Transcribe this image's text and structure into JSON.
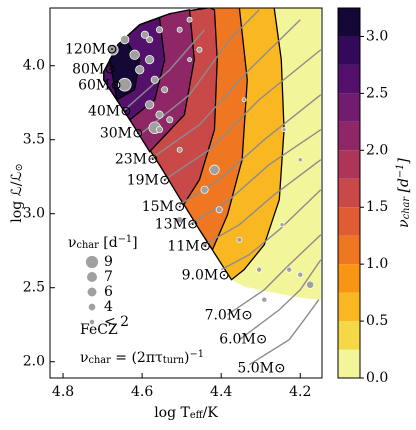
{
  "chart_data": {
    "type": "contour",
    "xlabel": [
      "log T",
      "eff",
      "/K"
    ],
    "ylabel": [
      "log ℒ/ℒ",
      "⊙"
    ],
    "xlim": [
      4.833,
      4.145
    ],
    "ylim": [
      1.89,
      4.39
    ],
    "xticks": [
      4.8,
      4.6,
      4.4,
      4.2
    ],
    "yticks": [
      {
        "value": 2,
        "label": "2.0"
      },
      {
        "value": 2.5,
        "label": "2.5"
      },
      {
        "value": 3,
        "label": "3.0"
      },
      {
        "value": 3.5,
        "label": "3.5"
      },
      {
        "value": 4,
        "label": "4.0"
      }
    ],
    "contour_line_color": "#000000",
    "contours": [
      {
        "level": 0,
        "points": [
          [
            4.697,
            3.959
          ],
          [
            4.661,
            4.142
          ],
          [
            4.606,
            4.277
          ],
          [
            4.53,
            4.351
          ],
          [
            4.43,
            4.392
          ],
          [
            4.148,
            4.392
          ],
          [
            4.148,
            2.419
          ],
          [
            4.2,
            2.432
          ],
          [
            4.279,
            2.473
          ],
          [
            4.342,
            2.507
          ],
          [
            4.374,
            2.554
          ],
          [
            4.455,
            2.892
          ],
          [
            4.556,
            3.331
          ],
          [
            4.631,
            3.635
          ],
          [
            4.697,
            3.905
          ]
        ]
      },
      {
        "level": 0.5,
        "points": [
          [
            4.697,
            3.959
          ],
          [
            4.661,
            4.142
          ],
          [
            4.606,
            4.277
          ],
          [
            4.53,
            4.351
          ],
          [
            4.43,
            4.392
          ],
          [
            4.266,
            4.392
          ],
          [
            4.248,
            4.041
          ],
          [
            4.241,
            3.568
          ],
          [
            4.253,
            3.095
          ],
          [
            4.291,
            2.791
          ],
          [
            4.342,
            2.622
          ],
          [
            4.374,
            2.554
          ],
          [
            4.455,
            2.892
          ],
          [
            4.556,
            3.331
          ],
          [
            4.631,
            3.635
          ],
          [
            4.697,
            3.905
          ]
        ]
      },
      {
        "level": 1,
        "points": [
          [
            4.697,
            3.959
          ],
          [
            4.661,
            4.142
          ],
          [
            4.606,
            4.277
          ],
          [
            4.53,
            4.351
          ],
          [
            4.43,
            4.392
          ],
          [
            4.354,
            4.392
          ],
          [
            4.334,
            3.905
          ],
          [
            4.347,
            3.365
          ],
          [
            4.384,
            2.993
          ],
          [
            4.422,
            2.757
          ],
          [
            4.455,
            2.892
          ],
          [
            4.556,
            3.331
          ],
          [
            4.631,
            3.635
          ],
          [
            4.697,
            3.905
          ]
        ]
      },
      {
        "level": 1.5,
        "points": [
          [
            4.697,
            3.959
          ],
          [
            4.661,
            4.142
          ],
          [
            4.606,
            4.277
          ],
          [
            4.53,
            4.351
          ],
          [
            4.43,
            4.392
          ],
          [
            4.417,
            4.378
          ],
          [
            4.41,
            4.041
          ],
          [
            4.417,
            3.568
          ],
          [
            4.455,
            3.23
          ],
          [
            4.495,
            3.061
          ],
          [
            4.556,
            3.331
          ],
          [
            4.631,
            3.635
          ],
          [
            4.697,
            3.905
          ]
        ]
      },
      {
        "level": 2,
        "points": [
          [
            4.697,
            3.959
          ],
          [
            4.661,
            4.142
          ],
          [
            4.606,
            4.277
          ],
          [
            4.53,
            4.351
          ],
          [
            4.48,
            4.378
          ],
          [
            4.468,
            4.041
          ],
          [
            4.493,
            3.669
          ],
          [
            4.581,
            3.419
          ],
          [
            4.631,
            3.635
          ],
          [
            4.697,
            3.905
          ]
        ]
      },
      {
        "level": 2.5,
        "points": [
          [
            4.697,
            3.959
          ],
          [
            4.661,
            4.142
          ],
          [
            4.606,
            4.277
          ],
          [
            4.556,
            4.324
          ],
          [
            4.543,
            4.041
          ],
          [
            4.568,
            3.77
          ],
          [
            4.631,
            3.635
          ],
          [
            4.697,
            3.905
          ]
        ]
      },
      {
        "level": 3,
        "points": [
          [
            4.682,
            4.041
          ],
          [
            4.644,
            4.176
          ],
          [
            4.606,
            4.041
          ],
          [
            4.619,
            3.838
          ],
          [
            4.664,
            3.77
          ]
        ]
      }
    ],
    "tracks_color": "#8c8c8c",
    "tracks": [
      {
        "label": "120M⊙",
        "x": 4.795,
        "y": 4.108
      },
      {
        "label": "80M⊙",
        "x": 4.777,
        "y": 3.973
      },
      {
        "label": "60M⊙",
        "x": 4.762,
        "y": 3.865
      },
      {
        "label": "40M⊙",
        "x": 4.737,
        "y": 3.689,
        "points": [
          [
            4.644,
            3.703
          ],
          [
            4.53,
            3.973
          ],
          [
            4.442,
            4.243
          ]
        ]
      },
      {
        "label": "30M⊙",
        "x": 4.707,
        "y": 3.541,
        "points": [
          [
            4.606,
            3.534
          ],
          [
            4.48,
            3.804
          ],
          [
            4.379,
            4.176
          ],
          [
            4.304,
            4.378
          ]
        ]
      },
      {
        "label": "23M⊙",
        "x": 4.669,
        "y": 3.365,
        "points": [
          [
            4.581,
            3.365
          ],
          [
            4.455,
            3.601
          ],
          [
            4.329,
            3.973
          ],
          [
            4.2,
            4.311
          ]
        ]
      },
      {
        "label": "19M⊙",
        "x": 4.639,
        "y": 3.223,
        "points": [
          [
            4.543,
            3.23
          ],
          [
            4.43,
            3.432
          ],
          [
            4.304,
            3.77
          ],
          [
            4.148,
            4.108
          ]
        ]
      },
      {
        "label": "15M⊙",
        "x": 4.601,
        "y": 3.047,
        "points": [
          [
            4.505,
            3.061
          ],
          [
            4.405,
            3.23
          ],
          [
            4.291,
            3.5
          ],
          [
            4.148,
            3.804
          ]
        ]
      },
      {
        "label": "13M⊙",
        "x": 4.568,
        "y": 2.926,
        "points": [
          [
            4.48,
            2.926
          ],
          [
            4.379,
            3.095
          ],
          [
            4.279,
            3.331
          ],
          [
            4.148,
            3.568
          ]
        ]
      },
      {
        "label": "11M⊙",
        "x": 4.536,
        "y": 2.777,
        "points": [
          [
            4.442,
            2.791
          ],
          [
            4.354,
            2.926
          ],
          [
            4.266,
            3.128
          ],
          [
            4.148,
            3.365
          ]
        ]
      },
      {
        "label": "9.0M⊙",
        "x": 4.5,
        "y": 2.581,
        "points": [
          [
            4.4,
            2.622
          ],
          [
            4.329,
            2.723
          ],
          [
            4.253,
            2.892
          ],
          [
            4.148,
            3.162
          ]
        ]
      },
      {
        "label": "7.0M⊙",
        "x": 4.442,
        "y": 2.311,
        "points": [
          [
            4.384,
            2.318
          ],
          [
            4.291,
            2.486
          ],
          [
            4.228,
            2.655
          ],
          [
            4.148,
            2.858
          ]
        ]
      },
      {
        "label": "6.0M⊙",
        "x": 4.405,
        "y": 2.149,
        "points": [
          [
            4.354,
            2.149
          ],
          [
            4.253,
            2.351
          ],
          [
            4.2,
            2.486
          ],
          [
            4.148,
            2.689
          ]
        ]
      },
      {
        "label": "5.0M⊙",
        "x": 4.359,
        "y": 1.953,
        "points": [
          [
            4.329,
            1.98
          ],
          [
            4.228,
            2.149
          ],
          [
            4.19,
            2.284
          ],
          [
            4.153,
            2.419
          ]
        ]
      }
    ],
    "stars_color": "#a0a0a0",
    "stars": [
      [
        4.674,
        4.108,
        7
      ],
      [
        4.644,
        4.176,
        5
      ],
      [
        4.593,
        4.209,
        4
      ],
      [
        4.556,
        4.243,
        3
      ],
      [
        4.619,
        4.074,
        6
      ],
      [
        4.581,
        4.041,
        5
      ],
      [
        4.644,
        3.872,
        9
      ],
      [
        4.606,
        3.973,
        5
      ],
      [
        4.568,
        3.905,
        4
      ],
      [
        4.543,
        3.838,
        3
      ],
      [
        4.581,
        3.736,
        5
      ],
      [
        4.556,
        3.669,
        4
      ],
      [
        4.568,
        3.581,
        8
      ],
      [
        4.53,
        3.635,
        3
      ],
      [
        4.505,
        4.243,
        2
      ],
      [
        4.48,
        4.311,
        2
      ],
      [
        4.455,
        4.108,
        2
      ],
      [
        4.417,
        3.297,
        6
      ],
      [
        4.442,
        3.162,
        4
      ],
      [
        4.405,
        3.027,
        3
      ],
      [
        4.505,
        2.959,
        3
      ],
      [
        4.442,
        2.791,
        2
      ],
      [
        4.354,
        2.824,
        2
      ],
      [
        4.304,
        2.622,
        2
      ],
      [
        4.228,
        2.622,
        2
      ],
      [
        4.2,
        2.588,
        2
      ],
      [
        4.175,
        2.52,
        4
      ],
      [
        4.291,
        2.419,
        2
      ],
      [
        4.246,
        2.926,
        1
      ],
      [
        4.2,
        3.365,
        1
      ],
      [
        4.241,
        3.568,
        1
      ],
      [
        4.505,
        3.432,
        2
      ],
      [
        4.48,
        4.041,
        1
      ],
      [
        4.581,
        4.176,
        3
      ],
      [
        4.556,
        3.568,
        3
      ],
      [
        4.342,
        3.77,
        1
      ]
    ],
    "size_legend": {
      "title": [
        "ν",
        "char",
        " [d",
        "−1",
        "]"
      ],
      "entries": [
        9,
        7,
        6,
        4,
        {
          "value": 2,
          "label": "< 2"
        }
      ]
    },
    "text_label": "FeCZ",
    "formula": [
      "ν",
      "char",
      " = (2πτ",
      "turn",
      ")",
      "−1"
    ],
    "colorbar": {
      "label": [
        "ν",
        "char",
        " [d",
        "−1",
        "]"
      ],
      "bounds": [
        0,
        0.25,
        0.5,
        0.75,
        1,
        1.25,
        1.5,
        1.75,
        2,
        2.25,
        2.5,
        2.75,
        3,
        3.25
      ],
      "colors": [
        "#f3f59a",
        "#f5d847",
        "#f9b722",
        "#f89512",
        "#ef7721",
        "#e05c33",
        "#c94848",
        "#ad3658",
        "#8f2767",
        "#711c6e",
        "#53116c",
        "#330a5a",
        "#150736"
      ],
      "ylim": [
        0,
        3.25
      ],
      "ticks": [
        {
          "value": 0,
          "label": "0.0"
        },
        {
          "value": 0.5,
          "label": "0.5"
        },
        {
          "value": 1,
          "label": "1.0"
        },
        {
          "value": 1.5,
          "label": "1.5"
        },
        {
          "value": 2,
          "label": "2.0"
        },
        {
          "value": 2.5,
          "label": "2.5"
        },
        {
          "value": 3,
          "label": "3.0"
        }
      ]
    }
  }
}
